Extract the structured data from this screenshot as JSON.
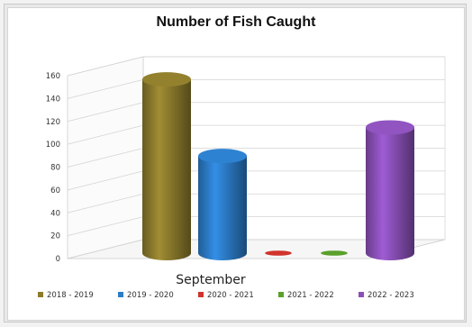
{
  "chart_data": {
    "type": "bar",
    "title": "Number of Fish Caught",
    "categories": [
      "September"
    ],
    "series": [
      {
        "name": "2018 - 2019",
        "values": [
          152
        ],
        "color": "#8c7b2c"
      },
      {
        "name": "2019 - 2020",
        "values": [
          85
        ],
        "color": "#2c7cc8"
      },
      {
        "name": "2020 - 2021",
        "values": [
          0
        ],
        "color": "#d0342c"
      },
      {
        "name": "2021 - 2022",
        "values": [
          0
        ],
        "color": "#5aa02c"
      },
      {
        "name": "2022 - 2023",
        "values": [
          110
        ],
        "color": "#8a50b8"
      }
    ],
    "ylim": [
      0,
      160
    ],
    "y_ticks": [
      "0",
      "20",
      "40",
      "60",
      "80",
      "100",
      "120",
      "140",
      "160"
    ],
    "grid": true,
    "legend_position": "bottom",
    "style": "3d-cylinder"
  }
}
